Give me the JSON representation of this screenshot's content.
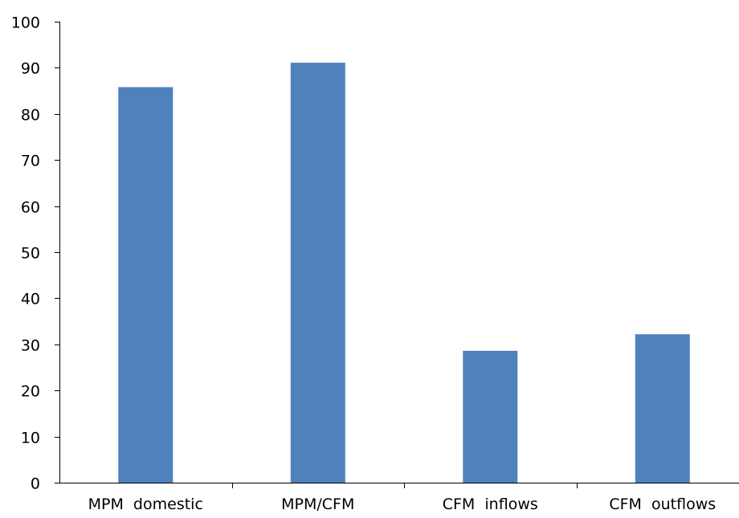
{
  "chart_data": {
    "type": "bar",
    "title": "",
    "xlabel": "",
    "ylabel": "",
    "categories": [
      "MPM  domestic",
      "MPM/CFM",
      "CFM  inflows",
      "CFM  outflows"
    ],
    "values": [
      85.8,
      91.1,
      28.6,
      32.2
    ],
    "ylim": [
      0,
      100
    ],
    "yticks": [
      "0",
      "10",
      "20",
      "30",
      "40",
      "50",
      "60",
      "70",
      "80",
      "90",
      "100"
    ],
    "grid": false,
    "legend": "none",
    "bar_color": "#4f81bd",
    "axis_color": "#000000"
  }
}
